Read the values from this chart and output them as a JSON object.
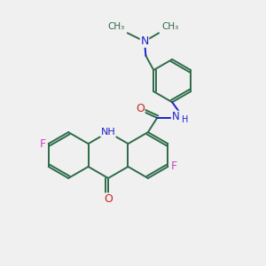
{
  "bg_color": "#f0f0f0",
  "bond_color": "#2d6b4a",
  "bond_width": 1.4,
  "n_color": "#2020cc",
  "o_color": "#cc2020",
  "f_color": "#cc44cc",
  "figsize": [
    3.0,
    3.0
  ],
  "dpi": 100,
  "xlim": [
    0,
    10
  ],
  "ylim": [
    0,
    10
  ]
}
